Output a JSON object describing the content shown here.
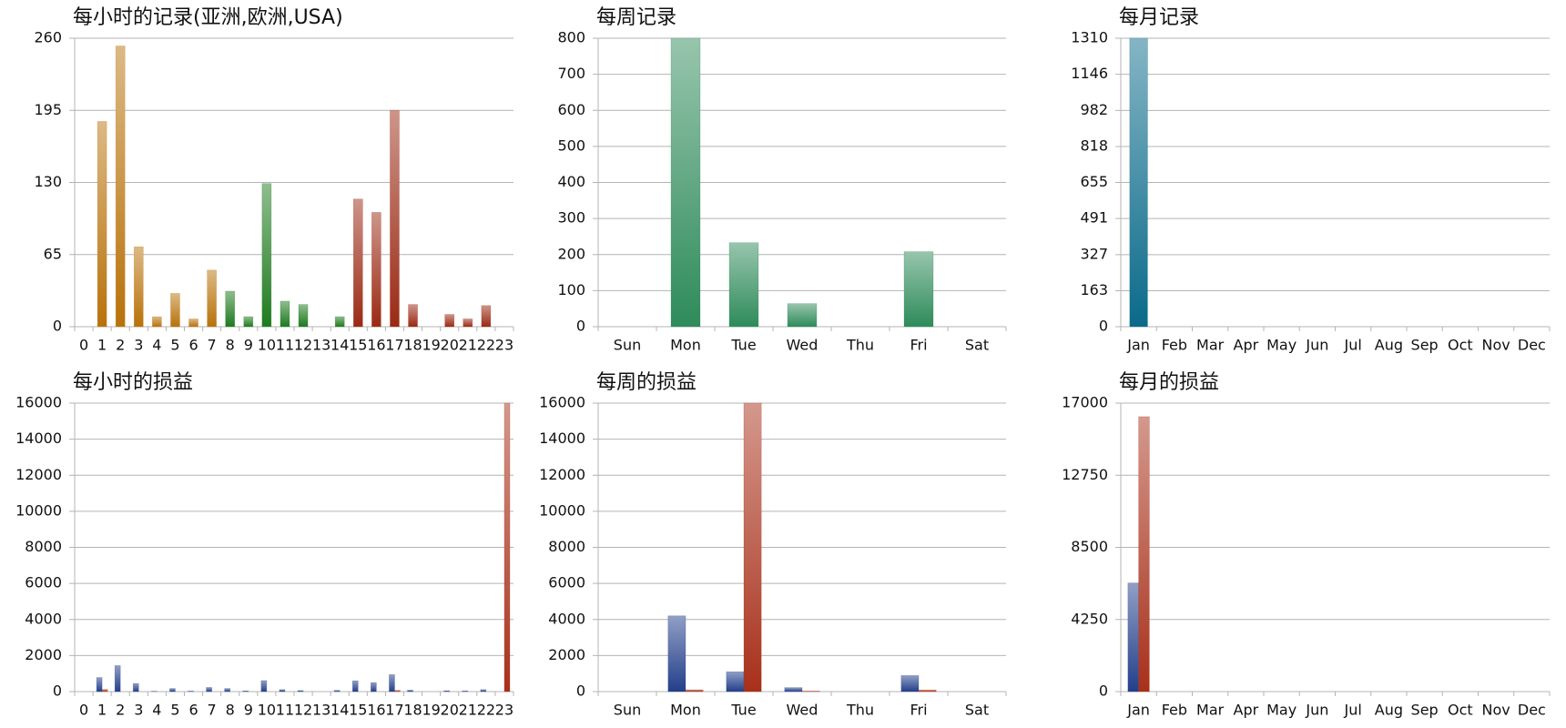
{
  "chart_data": [
    {
      "type": "bar",
      "title": "每小时的记录(亚洲,欧洲,USA)",
      "categories": [
        "0",
        "1",
        "2",
        "3",
        "4",
        "5",
        "6",
        "7",
        "8",
        "9",
        "10",
        "11",
        "12",
        "13",
        "14",
        "15",
        "16",
        "17",
        "18",
        "19",
        "20",
        "21",
        "22",
        "23"
      ],
      "values": [
        0,
        185,
        253,
        72,
        9,
        30,
        7,
        51,
        32,
        9,
        129,
        23,
        20,
        0,
        9,
        115,
        103,
        195,
        20,
        0,
        11,
        7,
        19,
        0
      ],
      "colors": [
        "#b8720a",
        "#b8720a",
        "#b8720a",
        "#b8720a",
        "#b8720a",
        "#b8720a",
        "#b8720a",
        "#b8720a",
        "#1e7a1e",
        "#1e7a1e",
        "#1e7a1e",
        "#1e7a1e",
        "#1e7a1e",
        "#1e7a1e",
        "#1e7a1e",
        "#9a2a14",
        "#9a2a14",
        "#9a2a14",
        "#9a2a14",
        "#9a2a14",
        "#9a2a14",
        "#9a2a14",
        "#9a2a14",
        "#9a2a14"
      ],
      "ylim": [
        0,
        260
      ],
      "yticks": [
        0,
        65,
        130,
        195,
        260
      ],
      "grid": true
    },
    {
      "type": "bar",
      "title": "每周记录",
      "categories": [
        "Sun",
        "Mon",
        "Tue",
        "Wed",
        "Thu",
        "Fri",
        "Sat"
      ],
      "values": [
        0,
        800,
        233,
        64,
        0,
        208,
        0
      ],
      "color": "#2e8b5a",
      "ylim": [
        0,
        800
      ],
      "yticks": [
        0,
        100,
        200,
        300,
        400,
        500,
        600,
        700,
        800
      ],
      "grid": true
    },
    {
      "type": "bar",
      "title": "每月记录",
      "categories": [
        "Jan",
        "Feb",
        "Mar",
        "Apr",
        "May",
        "Jun",
        "Jul",
        "Aug",
        "Sep",
        "Oct",
        "Nov",
        "Dec"
      ],
      "values": [
        1310,
        0,
        0,
        0,
        0,
        0,
        0,
        0,
        0,
        0,
        0,
        0
      ],
      "color": "#0a6a8a",
      "ylim": [
        0,
        1310
      ],
      "yticks": [
        0,
        163,
        327,
        491,
        655,
        818,
        982,
        1146,
        1310
      ],
      "grid": true
    },
    {
      "type": "bar",
      "title": "每小时的损益",
      "categories": [
        "0",
        "1",
        "2",
        "3",
        "4",
        "5",
        "6",
        "7",
        "8",
        "9",
        "10",
        "11",
        "12",
        "13",
        "14",
        "15",
        "16",
        "17",
        "18",
        "19",
        "20",
        "21",
        "22",
        "23"
      ],
      "series": [
        {
          "color": "#233f8a",
          "values": [
            0,
            780,
            1440,
            450,
            20,
            170,
            30,
            230,
            170,
            40,
            610,
            110,
            60,
            0,
            70,
            600,
            500,
            940,
            80,
            0,
            50,
            40,
            110,
            0
          ]
        },
        {
          "color": "#a8301a",
          "values": [
            0,
            120,
            0,
            0,
            0,
            0,
            0,
            0,
            0,
            0,
            0,
            0,
            0,
            0,
            0,
            0,
            0,
            70,
            0,
            0,
            0,
            0,
            0,
            16000
          ]
        }
      ],
      "ylim": [
        0,
        16000
      ],
      "yticks": [
        0,
        2000,
        4000,
        6000,
        8000,
        10000,
        12000,
        14000,
        16000
      ],
      "grid": true
    },
    {
      "type": "bar",
      "title": "每周的损益",
      "categories": [
        "Sun",
        "Mon",
        "Tue",
        "Wed",
        "Thu",
        "Fri",
        "Sat"
      ],
      "series": [
        {
          "color": "#233f8a",
          "values": [
            0,
            4200,
            1100,
            220,
            0,
            890,
            0
          ]
        },
        {
          "color": "#a8301a",
          "values": [
            0,
            100,
            16000,
            30,
            0,
            90,
            0
          ]
        }
      ],
      "ylim": [
        0,
        16000
      ],
      "yticks": [
        0,
        2000,
        4000,
        6000,
        8000,
        10000,
        12000,
        14000,
        16000
      ],
      "grid": true
    },
    {
      "type": "bar",
      "title": "每月的损益",
      "categories": [
        "Jan",
        "Feb",
        "Mar",
        "Apr",
        "May",
        "Jun",
        "Jul",
        "Aug",
        "Sep",
        "Oct",
        "Nov",
        "Dec"
      ],
      "series": [
        {
          "color": "#233f8a",
          "values": [
            6400,
            0,
            0,
            0,
            0,
            0,
            0,
            0,
            0,
            0,
            0,
            0
          ]
        },
        {
          "color": "#a8301a",
          "values": [
            16200,
            0,
            0,
            0,
            0,
            0,
            0,
            0,
            0,
            0,
            0,
            0
          ]
        }
      ],
      "ylim": [
        0,
        17000
      ],
      "yticks": [
        0,
        4250,
        8500,
        12750,
        17000
      ],
      "grid": true
    }
  ]
}
